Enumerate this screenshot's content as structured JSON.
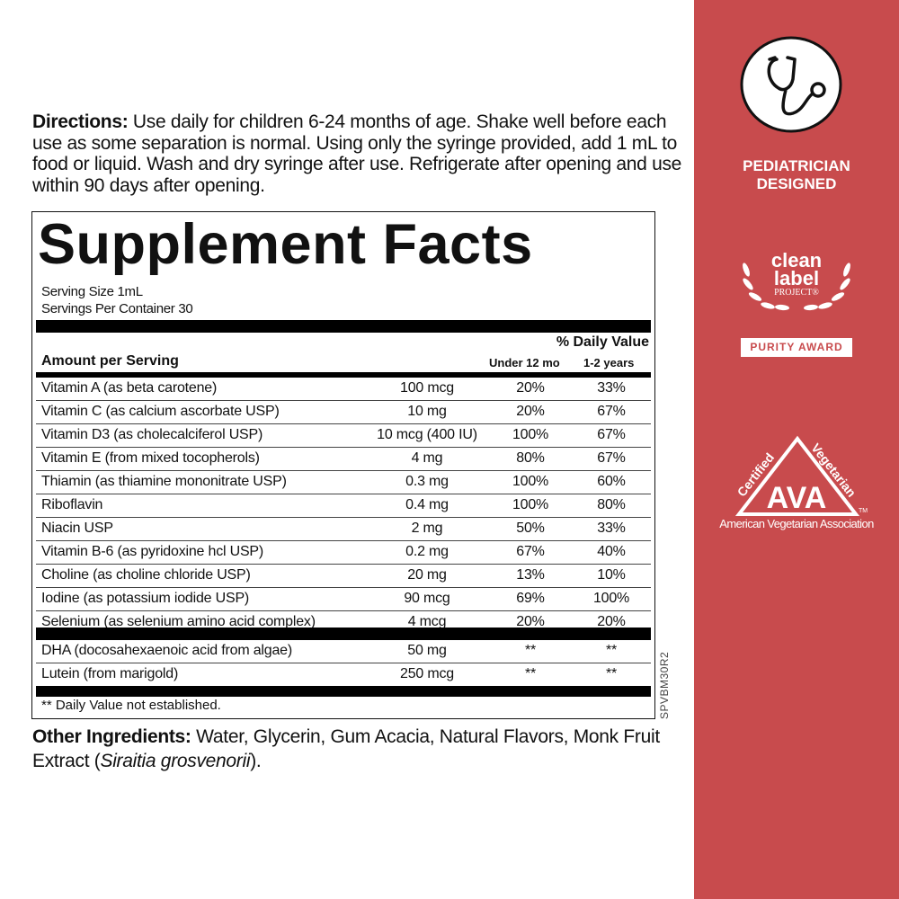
{
  "directions": {
    "label": "Directions:",
    "text": " Use daily for children 6-24 months of age. Shake well before each use as some separation is normal. Using only the syringe provided, add 1 mL to food or liquid. Wash and dry syringe after use. Refrigerate after opening and use within 90 days after opening."
  },
  "facts": {
    "title": "Supplement Facts",
    "serving_size": "Serving Size 1mL",
    "servings_per_container": "Servings Per Container 30",
    "daily_value_header": "% Daily Value",
    "amount_header": "Amount per Serving",
    "col_under12": "Under 12 mo",
    "col_1to2": "1-2 years",
    "rows": [
      [
        "Vitamin A (as beta carotene)",
        "100 mcg",
        "20%",
        "33%"
      ],
      [
        "Vitamin C (as calcium ascorbate USP)",
        "10 mg",
        "20%",
        "67%"
      ],
      [
        "Vitamin D3 (as cholecalciferol USP)",
        "10 mcg (400 IU)",
        "100%",
        "67%"
      ],
      [
        "Vitamin E (from mixed tocopherols)",
        "4 mg",
        "80%",
        "67%"
      ],
      [
        "Thiamin (as thiamine mononitrate USP)",
        "0.3 mg",
        "100%",
        "60%"
      ],
      [
        "Riboflavin",
        "0.4 mg",
        "100%",
        "80%"
      ],
      [
        "Niacin USP",
        "2 mg",
        "50%",
        "33%"
      ],
      [
        "Vitamin B-6 (as pyridoxine hcl USP)",
        "0.2 mg",
        "67%",
        "40%"
      ],
      [
        "Choline (as choline chloride USP)",
        "20 mg",
        "13%",
        "10%"
      ],
      [
        "Iodine (as potassium iodide USP)",
        "90 mcg",
        "69%",
        "100%"
      ],
      [
        "Selenium (as selenium amino acid complex)",
        "4 mcg",
        "20%",
        "20%"
      ]
    ],
    "rows2": [
      [
        "DHA (docosahexaenoic acid from algae)",
        "50 mg",
        "**",
        "**"
      ],
      [
        "Lutein (from marigold)",
        "250 mcg",
        "**",
        "**"
      ]
    ],
    "footnote": "** Daily Value not established."
  },
  "code": "SPVBM30R2",
  "other": {
    "label": "Other Ingredients:",
    "text": " Water, Glycerin, Gum Acacia, Natural Flavors, Monk Fruit Extract (",
    "italic": "Siraitia grosvenorii",
    "end": ")."
  },
  "panel": {
    "color": "#c84b4d",
    "badge1": {
      "icon": "stethoscope-icon",
      "line1": "PEDIATRICIAN",
      "line2": "DESIGNED"
    },
    "badge2": {
      "line1": "clean",
      "line2": "label",
      "line3": "PROJECT®",
      "award": "PURITY AWARD"
    },
    "badge3": {
      "left": "Certified",
      "right": "Vegetarian",
      "mark": "AVA",
      "tm": "TM",
      "org": "American Vegetarian Association"
    }
  }
}
